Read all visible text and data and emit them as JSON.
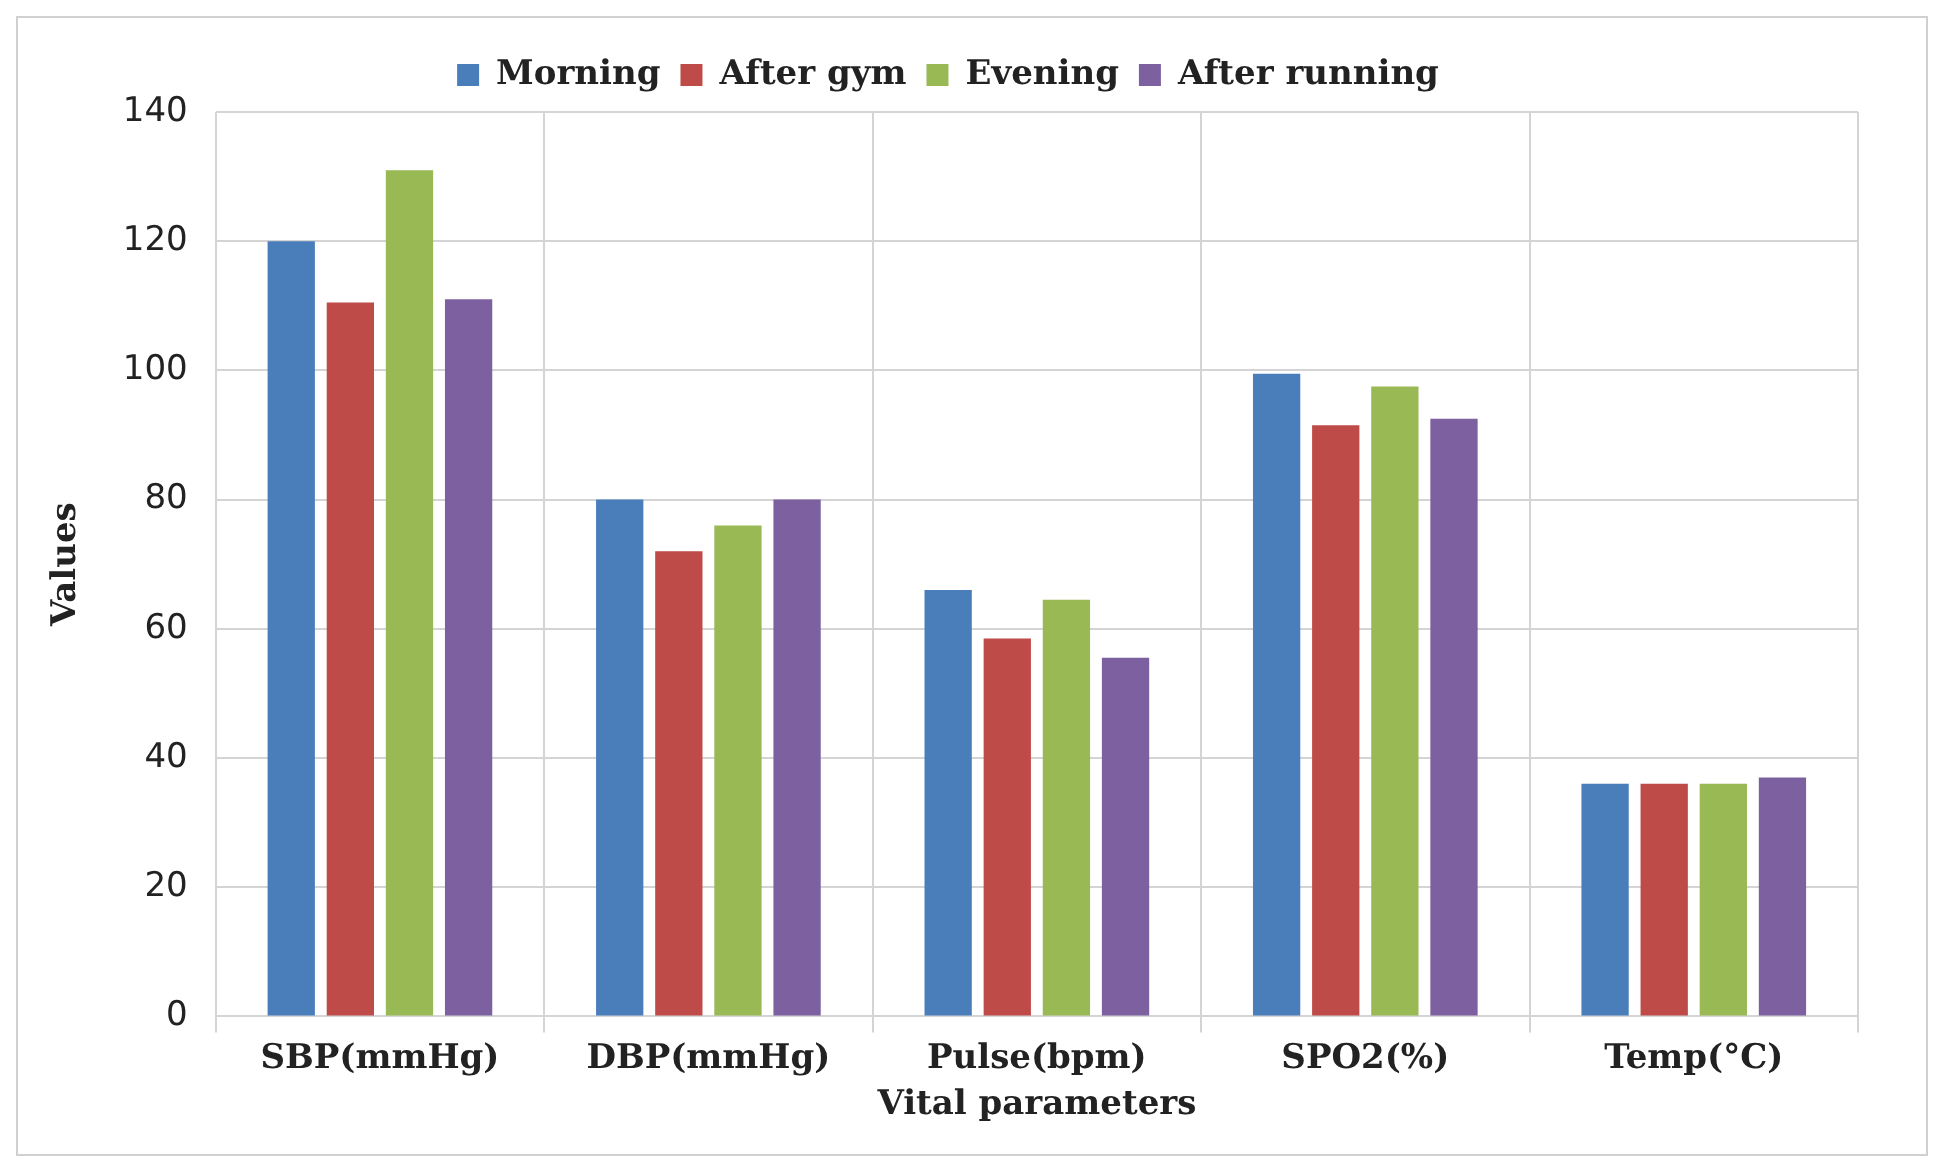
{
  "chart_data": {
    "type": "bar",
    "xlabel": "Vital parameters",
    "ylabel": "Values",
    "categories": [
      "SBP(mmHg)",
      "DBP(mmHg)",
      "Pulse(bpm)",
      "SPO2(%)",
      "Temp(°C)"
    ],
    "series": [
      {
        "name": "Morning",
        "color": "#4a7ebb",
        "values": [
          120,
          80,
          66,
          99.5,
          36
        ]
      },
      {
        "name": "After gym",
        "color": "#be4b48",
        "values": [
          110.5,
          72,
          58.5,
          91.5,
          36
        ]
      },
      {
        "name": "Evening",
        "color": "#98b954",
        "values": [
          131,
          76,
          64.5,
          97.5,
          36
        ]
      },
      {
        "name": "After running",
        "color": "#7d60a0",
        "values": [
          111,
          80,
          55.5,
          92.5,
          37
        ]
      }
    ],
    "ylim": [
      0,
      140
    ],
    "yticks": [
      0,
      20,
      40,
      60,
      80,
      100,
      120,
      140
    ],
    "grid": true,
    "legend": "top"
  }
}
